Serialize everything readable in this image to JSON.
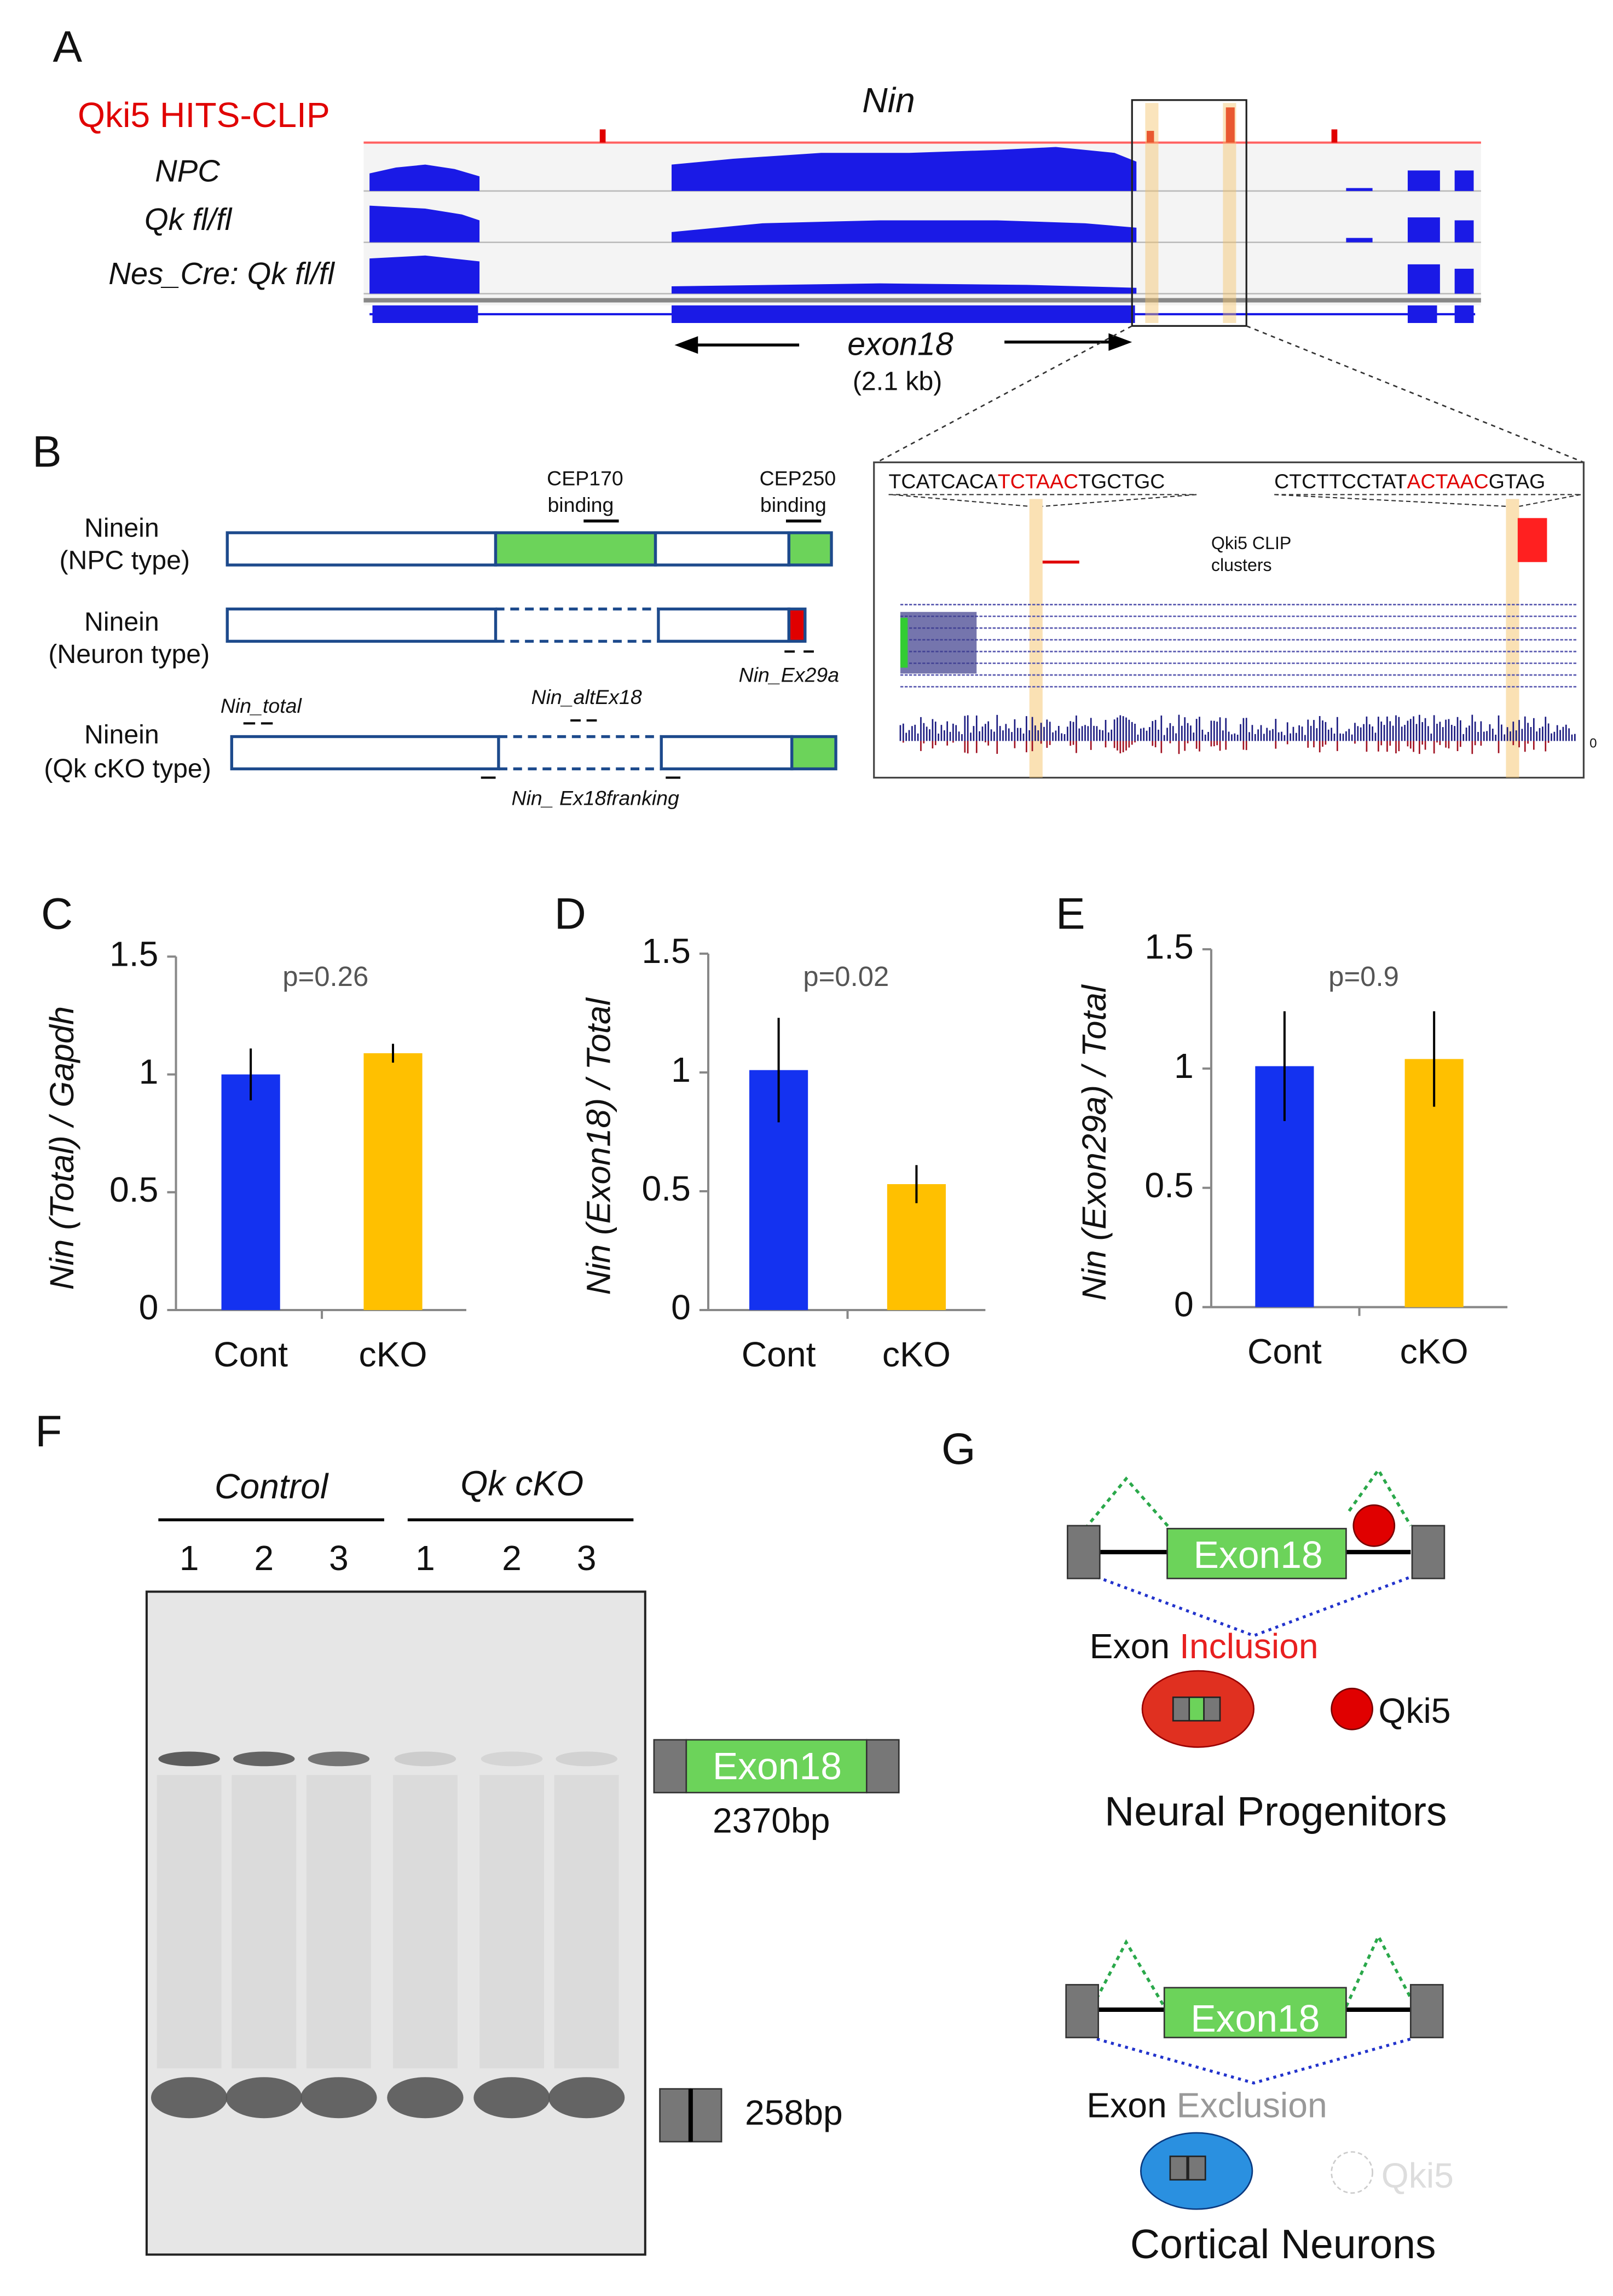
{
  "panel_labels": [
    "A",
    "B",
    "C",
    "D",
    "E",
    "F",
    "G"
  ],
  "panel_a": {
    "clip_label": "Qki5 HITS-CLIP",
    "gene": "Nin",
    "tracks": [
      "NPC",
      "Qk fl/fl",
      "Nes_Cre: Qk fl/fl"
    ],
    "exon_label": "exon18",
    "exon_size": "(2.1 kb)"
  },
  "panel_b": {
    "isoforms": [
      [
        "Ninein",
        "(NPC type)"
      ],
      [
        "Ninein",
        "(Neuron type)"
      ],
      [
        "Ninein",
        "(Qk cKO type)"
      ]
    ],
    "domains": [
      [
        "CEP170",
        "binding"
      ],
      [
        "CEP250",
        "binding"
      ]
    ],
    "primers": [
      "Nin_total",
      "Nin_altEx18",
      "Nin_Ex29a",
      "Nin_ Ex18franking"
    ],
    "inset": {
      "seq1": [
        "TCATCACA",
        "TCTAAC",
        "TGCTGC"
      ],
      "seq2": [
        "CTCTTCCTAT",
        "ACTAAC",
        "GTAG"
      ],
      "clusters": [
        "Qki5 CLIP",
        "clusters"
      ],
      "zero": "0"
    }
  },
  "chart_data": [
    {
      "type": "bar",
      "ylabel": "Nin (Total) / Gapdh",
      "annotation": "p=0.26",
      "categories": [
        "Cont",
        "cKO"
      ],
      "values": [
        1.0,
        1.09
      ],
      "errors": [
        0.11,
        0.04
      ],
      "colors": [
        "#1432f0",
        "#ffc000"
      ],
      "ylim": [
        0,
        1.5
      ],
      "yticks": [
        0,
        0.5,
        1,
        1.5
      ]
    },
    {
      "type": "bar",
      "ylabel": "Nin (Exon18) / Total",
      "annotation": "p=0.02",
      "categories": [
        "Cont",
        "cKO"
      ],
      "values": [
        1.01,
        0.53
      ],
      "errors": [
        0.22,
        0.08
      ],
      "colors": [
        "#1432f0",
        "#ffc000"
      ],
      "ylim": [
        0,
        1.5
      ],
      "yticks": [
        0,
        0.5,
        1,
        1.5
      ]
    },
    {
      "type": "bar",
      "ylabel": "Nin (Exon29a) / Total",
      "annotation": "p=0.9",
      "categories": [
        "Cont",
        "cKO"
      ],
      "values": [
        1.01,
        1.04
      ],
      "errors": [
        0.23,
        0.2
      ],
      "colors": [
        "#1432f0",
        "#ffc000"
      ],
      "ylim": [
        0,
        1.5
      ],
      "yticks": [
        0,
        0.5,
        1,
        1.5
      ]
    }
  ],
  "panel_f": {
    "groups": [
      "Control",
      "Qk cKO"
    ],
    "lanes": [
      "1",
      "2",
      "3",
      "1",
      "2",
      "3"
    ],
    "exon_label": "Exon18",
    "long_product": "2370bp",
    "short_product": "258bp"
  },
  "panel_g": {
    "top": {
      "exon": "Exon18",
      "event": [
        "Exon ",
        "Inclusion"
      ],
      "factor": "Qki5",
      "cell": "Neural Progenitors"
    },
    "bottom": {
      "exon": "Exon18",
      "event": [
        "Exon ",
        "Exclusion"
      ],
      "factor": "Qki5",
      "cell": "Cortical Neurons"
    }
  }
}
